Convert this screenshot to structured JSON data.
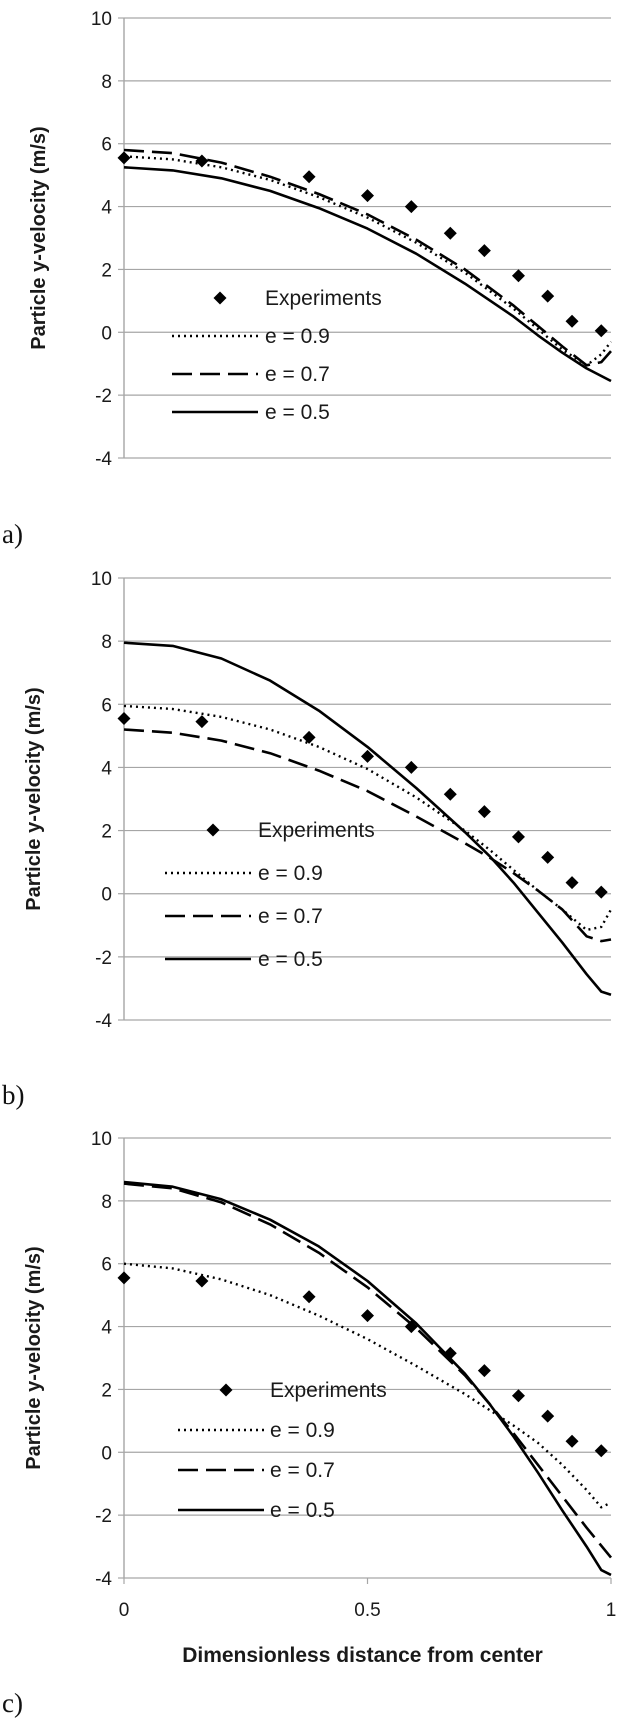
{
  "chart_data": [
    {
      "type": "scatter",
      "panel_label": "a)",
      "ylabel": "Particle y-velocity (m/s)",
      "xlabel": "",
      "ylim": [
        -4,
        10
      ],
      "yticks": [
        "-4",
        "-2",
        "0",
        "2",
        "4",
        "6",
        "8",
        "10"
      ],
      "xlim": [
        0,
        1
      ],
      "xticks": [],
      "grid": "horizontal",
      "legend": "center-left",
      "colors": {
        "series": "#000000",
        "grid": "#a6a6a6"
      },
      "series": [
        {
          "name": "Experiments",
          "style": "diamond",
          "x": [
            0.0,
            0.16,
            0.38,
            0.5,
            0.59,
            0.67,
            0.74,
            0.81,
            0.87,
            0.92,
            0.98
          ],
          "y": [
            5.55,
            5.45,
            4.95,
            4.35,
            4.0,
            3.15,
            2.6,
            1.8,
            1.15,
            0.35,
            0.05
          ]
        },
        {
          "name": "e = 0.9",
          "style": "dotted",
          "x": [
            0,
            0.1,
            0.2,
            0.3,
            0.4,
            0.5,
            0.6,
            0.7,
            0.8,
            0.85,
            0.9,
            0.95,
            0.98,
            1.0
          ],
          "y": [
            5.6,
            5.5,
            5.25,
            4.85,
            4.3,
            3.65,
            2.85,
            1.9,
            0.75,
            0.1,
            -0.55,
            -1.05,
            -0.7,
            -0.3
          ]
        },
        {
          "name": "e = 0.7",
          "style": "dashed",
          "x": [
            0,
            0.1,
            0.2,
            0.3,
            0.4,
            0.5,
            0.6,
            0.7,
            0.8,
            0.85,
            0.9,
            0.95,
            0.98,
            1.0
          ],
          "y": [
            5.8,
            5.7,
            5.4,
            4.95,
            4.4,
            3.75,
            2.95,
            2.0,
            0.85,
            0.2,
            -0.45,
            -1.05,
            -0.95,
            -0.6
          ]
        },
        {
          "name": "e = 0.5",
          "style": "solid",
          "x": [
            0,
            0.1,
            0.2,
            0.3,
            0.4,
            0.5,
            0.6,
            0.7,
            0.8,
            0.85,
            0.9,
            0.95,
            1.0
          ],
          "y": [
            5.25,
            5.15,
            4.9,
            4.5,
            3.95,
            3.3,
            2.5,
            1.55,
            0.5,
            -0.1,
            -0.65,
            -1.15,
            -1.55
          ]
        }
      ]
    },
    {
      "type": "scatter",
      "panel_label": "b)",
      "ylabel": "Particle y-velocity (m/s)",
      "xlabel": "",
      "ylim": [
        -4,
        10
      ],
      "yticks": [
        "-4",
        "-2",
        "0",
        "2",
        "4",
        "6",
        "8",
        "10"
      ],
      "xlim": [
        0,
        1
      ],
      "xticks": [],
      "grid": "horizontal",
      "legend": "center-left",
      "colors": {
        "series": "#000000",
        "grid": "#a6a6a6"
      },
      "series": [
        {
          "name": "Experiments",
          "style": "diamond",
          "x": [
            0.0,
            0.16,
            0.38,
            0.5,
            0.59,
            0.67,
            0.74,
            0.81,
            0.87,
            0.92,
            0.98
          ],
          "y": [
            5.55,
            5.45,
            4.95,
            4.35,
            4.0,
            3.15,
            2.6,
            1.8,
            1.15,
            0.35,
            0.05
          ]
        },
        {
          "name": "e = 0.9",
          "style": "dotted",
          "x": [
            0,
            0.1,
            0.2,
            0.3,
            0.4,
            0.5,
            0.6,
            0.7,
            0.75,
            0.8,
            0.85,
            0.9,
            0.95,
            0.98,
            1.0
          ],
          "y": [
            5.95,
            5.85,
            5.6,
            5.2,
            4.65,
            3.95,
            3.05,
            2.0,
            1.4,
            0.75,
            0.1,
            -0.5,
            -1.15,
            -1.05,
            -0.5
          ]
        },
        {
          "name": "e = 0.7",
          "style": "dashed",
          "x": [
            0,
            0.1,
            0.2,
            0.3,
            0.4,
            0.5,
            0.6,
            0.7,
            0.75,
            0.8,
            0.85,
            0.9,
            0.95,
            0.98,
            1.0
          ],
          "y": [
            5.2,
            5.1,
            4.85,
            4.45,
            3.9,
            3.25,
            2.45,
            1.6,
            1.15,
            0.65,
            0.1,
            -0.5,
            -1.35,
            -1.5,
            -1.45
          ]
        },
        {
          "name": "e = 0.5",
          "style": "solid",
          "x": [
            0,
            0.1,
            0.2,
            0.3,
            0.4,
            0.5,
            0.6,
            0.7,
            0.75,
            0.8,
            0.85,
            0.9,
            0.95,
            0.98,
            1.0
          ],
          "y": [
            7.95,
            7.85,
            7.45,
            6.75,
            5.8,
            4.65,
            3.35,
            1.95,
            1.2,
            0.35,
            -0.6,
            -1.55,
            -2.55,
            -3.1,
            -3.2
          ]
        }
      ]
    },
    {
      "type": "scatter",
      "panel_label": "c)",
      "ylabel": "Particle y-velocity (m/s)",
      "xlabel": "Dimensionless distance from center",
      "ylim": [
        -4,
        10
      ],
      "yticks": [
        "-4",
        "-2",
        "0",
        "2",
        "4",
        "6",
        "8",
        "10"
      ],
      "xlim": [
        0,
        1
      ],
      "xticks": [
        "0",
        "0.5",
        "1"
      ],
      "grid": "horizontal",
      "legend": "center-left",
      "colors": {
        "series": "#000000",
        "grid": "#a6a6a6"
      },
      "series": [
        {
          "name": "Experiments",
          "style": "diamond",
          "x": [
            0.0,
            0.16,
            0.38,
            0.5,
            0.59,
            0.67,
            0.74,
            0.81,
            0.87,
            0.92,
            0.98
          ],
          "y": [
            5.55,
            5.45,
            4.95,
            4.35,
            4.0,
            3.15,
            2.6,
            1.8,
            1.15,
            0.35,
            0.05
          ]
        },
        {
          "name": "e = 0.9",
          "style": "dotted",
          "x": [
            0,
            0.1,
            0.2,
            0.3,
            0.4,
            0.5,
            0.6,
            0.7,
            0.75,
            0.8,
            0.85,
            0.9,
            0.95,
            0.98,
            1.0
          ],
          "y": [
            6.0,
            5.85,
            5.5,
            5.0,
            4.35,
            3.6,
            2.75,
            1.85,
            1.35,
            0.85,
            0.3,
            -0.4,
            -1.2,
            -1.75,
            -1.6
          ]
        },
        {
          "name": "e = 0.7",
          "style": "dashed",
          "x": [
            0,
            0.1,
            0.2,
            0.3,
            0.4,
            0.5,
            0.6,
            0.7,
            0.75,
            0.8,
            0.85,
            0.9,
            0.95,
            1.0
          ],
          "y": [
            8.55,
            8.4,
            7.95,
            7.25,
            6.35,
            5.25,
            3.95,
            2.45,
            1.55,
            0.6,
            -0.4,
            -1.4,
            -2.4,
            -3.35
          ]
        },
        {
          "name": "e = 0.5",
          "style": "solid",
          "x": [
            0,
            0.1,
            0.2,
            0.3,
            0.4,
            0.5,
            0.6,
            0.7,
            0.75,
            0.8,
            0.85,
            0.9,
            0.95,
            0.98,
            1.0
          ],
          "y": [
            8.6,
            8.45,
            8.05,
            7.4,
            6.55,
            5.45,
            4.1,
            2.5,
            1.55,
            0.5,
            -0.65,
            -1.85,
            -3.0,
            -3.75,
            -3.9
          ]
        }
      ]
    }
  ]
}
